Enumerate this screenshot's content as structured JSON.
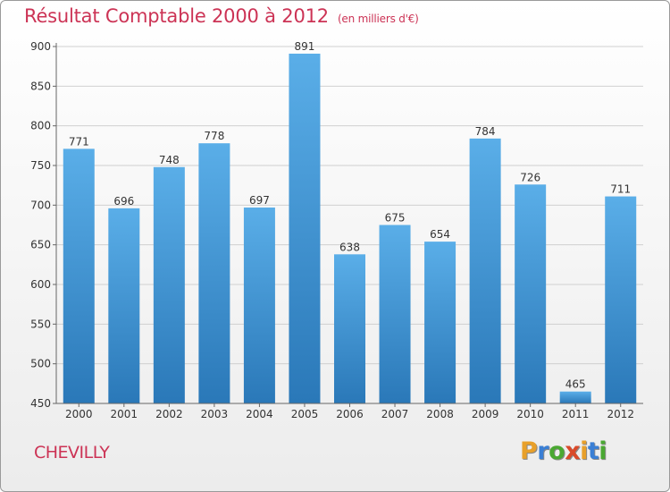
{
  "header": {
    "title": "Résultat Comptable 2000 à 2012",
    "subtitle": "(en milliers d'€)"
  },
  "footer": {
    "city": "CHEVILLY",
    "logo_letters": [
      {
        "char": "P",
        "color": "#e8a02a"
      },
      {
        "char": "r",
        "color": "#3a7fd5"
      },
      {
        "char": "o",
        "color": "#4aa832"
      },
      {
        "char": "x",
        "color": "#d94a2a"
      },
      {
        "char": "i",
        "color": "#e8a02a"
      },
      {
        "char": "t",
        "color": "#3a7fd5"
      },
      {
        "char": "i",
        "color": "#4aa832"
      }
    ]
  },
  "colors": {
    "title": "#cc3355",
    "bar_top": "#5aaee8",
    "bar_bottom": "#2a78b8",
    "grid": "#d0d0d0"
  },
  "chart_data": {
    "type": "bar",
    "title": "Résultat Comptable 2000 à 2012",
    "subtitle": "(en milliers d'€)",
    "xlabel": "",
    "ylabel": "",
    "categories": [
      "2000",
      "2001",
      "2002",
      "2003",
      "2004",
      "2005",
      "2006",
      "2007",
      "2008",
      "2009",
      "2010",
      "2011",
      "2012"
    ],
    "values": [
      771,
      696,
      748,
      778,
      697,
      891,
      638,
      675,
      654,
      784,
      726,
      465,
      711
    ],
    "value_labels": [
      "771",
      "696",
      "748",
      "778",
      "697",
      "891",
      "638",
      "675",
      "654",
      "784",
      "726",
      "465",
      "711"
    ],
    "yticks": [
      450,
      500,
      550,
      600,
      650,
      700,
      750,
      800,
      850,
      900
    ],
    "ytick_labels": [
      "450",
      "500",
      "550",
      "600",
      "650",
      "700",
      "750",
      "800",
      "850",
      "900"
    ],
    "ylim": [
      450,
      900
    ],
    "grid": true
  }
}
